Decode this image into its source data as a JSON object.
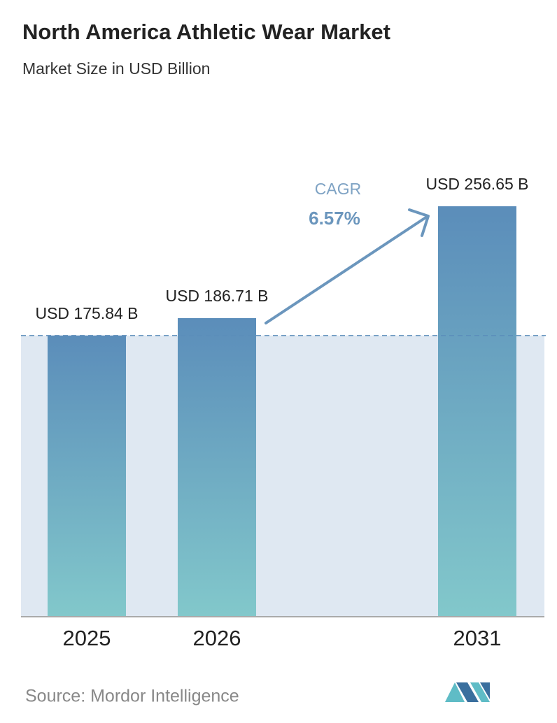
{
  "chart_data": {
    "type": "bar",
    "title": "North America Athletic Wear Market",
    "subtitle": "Market Size in USD Billion",
    "categories": [
      "2025",
      "2026",
      "2031"
    ],
    "values": [
      175.84,
      186.71,
      256.65
    ],
    "value_labels": [
      "USD 175.84 B",
      "USD 186.71 B",
      "USD 256.65 B"
    ],
    "annotations": [
      "CAGR",
      "6.57%"
    ],
    "source": "Source: Mordor Intelligence",
    "gradient": [
      "#5b8dba",
      "#82c8cb"
    ],
    "reference_line": true
  }
}
